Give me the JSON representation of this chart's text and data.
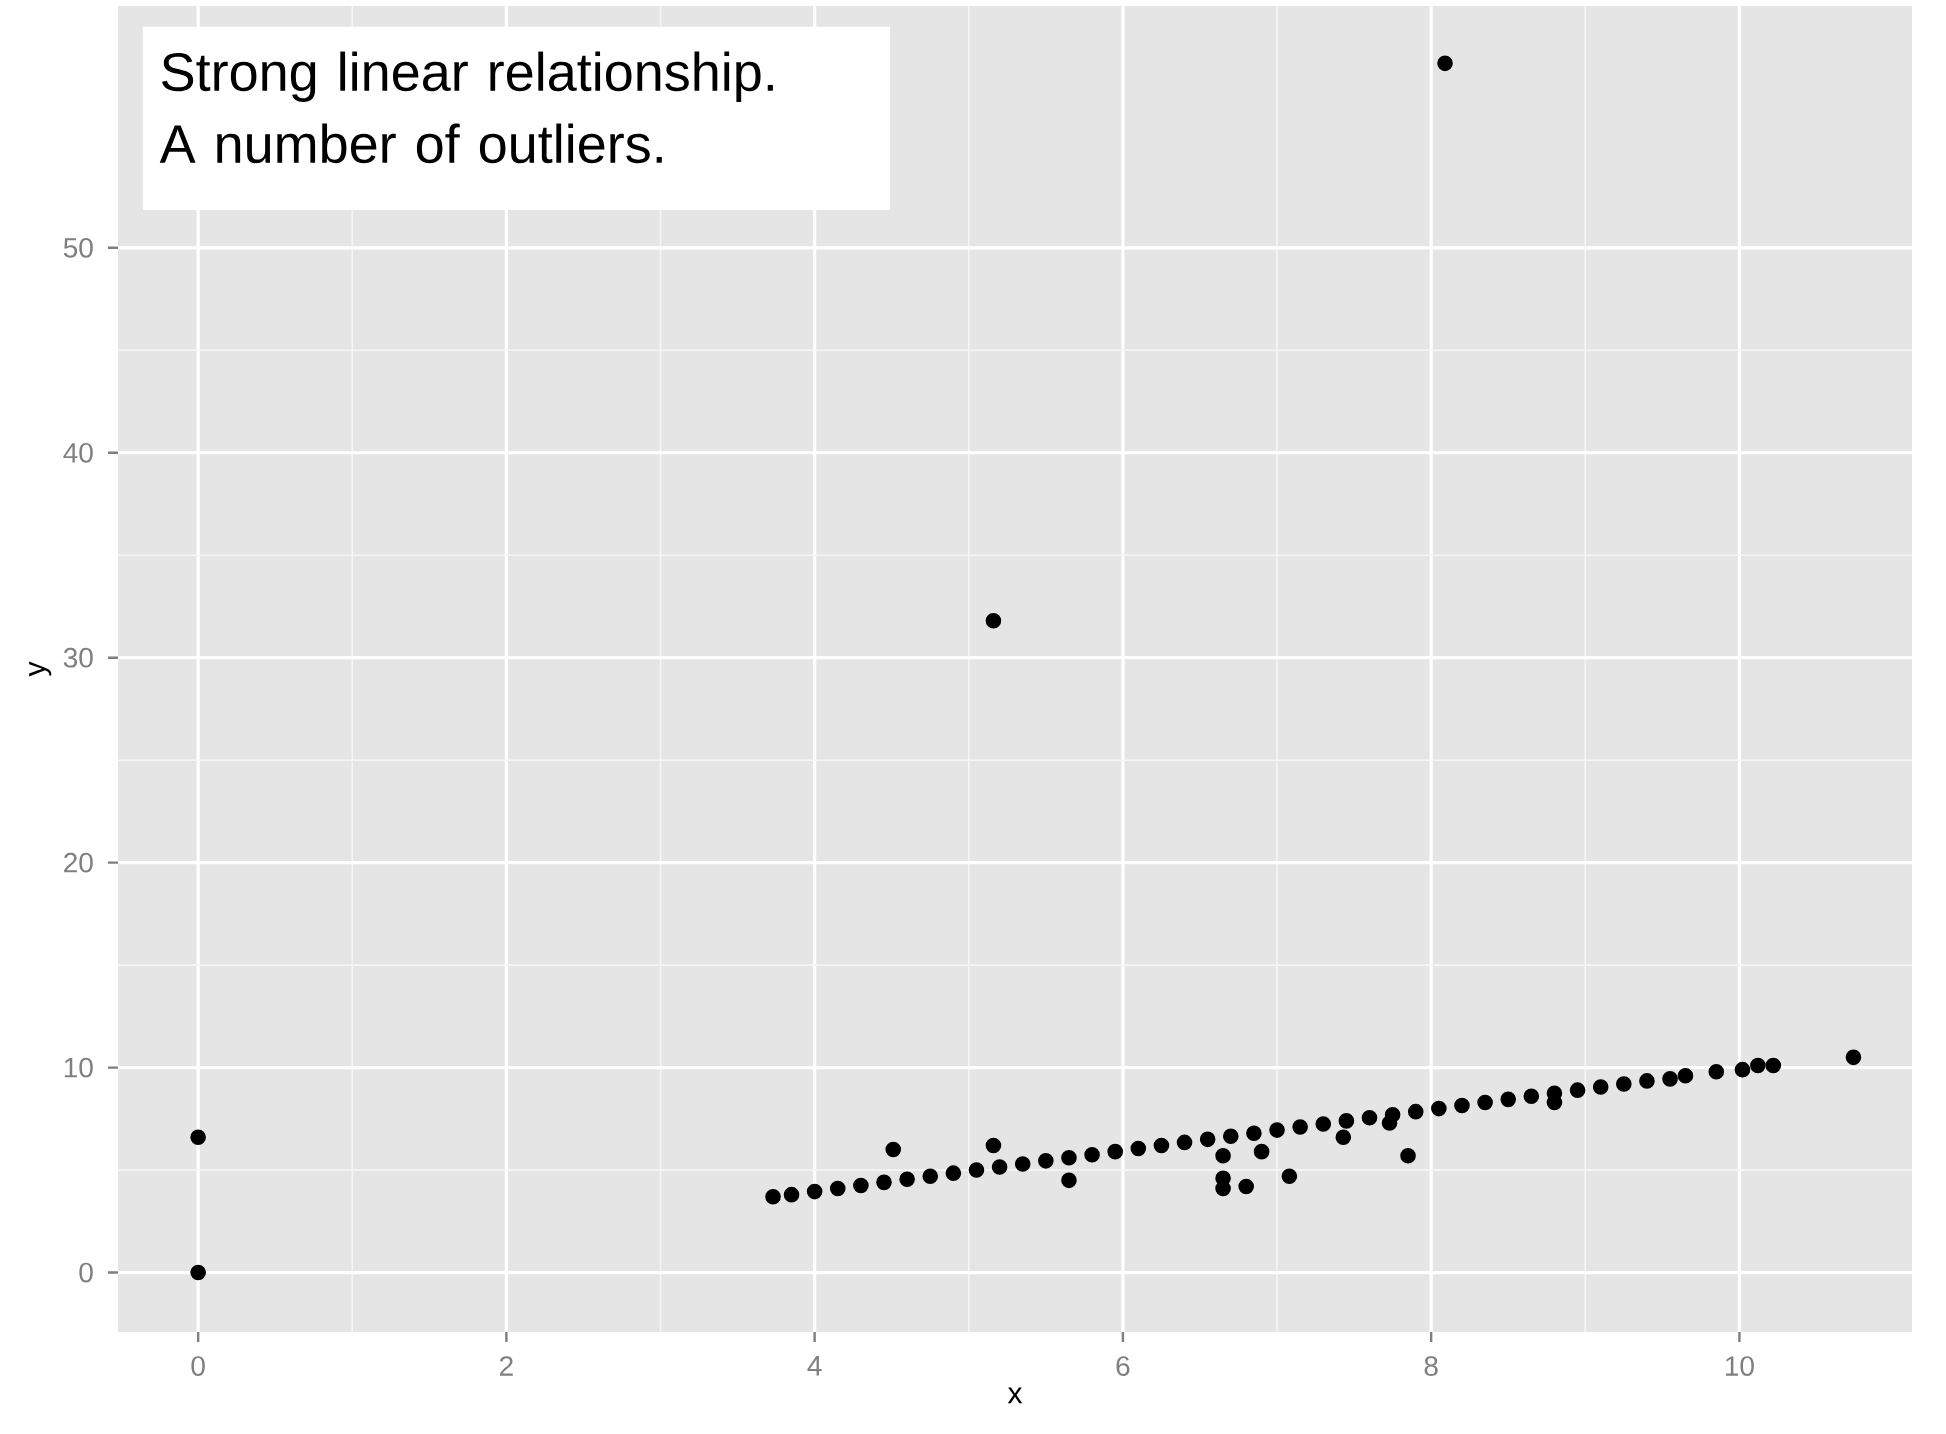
{
  "chart_data": {
    "type": "scatter",
    "xlabel": "x",
    "ylabel": "y",
    "annotations": [
      "Strong linear relationship.",
      "A number of outliers."
    ],
    "xlim": [
      -0.52,
      11.12
    ],
    "ylim": [
      -2.9,
      61.8
    ],
    "xticks": [
      0,
      2,
      4,
      6,
      8,
      10
    ],
    "yticks": [
      0,
      10,
      20,
      30,
      40,
      50
    ],
    "grid": true,
    "marker": "circle",
    "color": "#000000",
    "x": [
      0,
      0,
      8.09,
      5.16,
      4.51,
      5.16,
      5.65,
      6.65,
      6.65,
      6.65,
      6.8,
      6.9,
      7.08,
      7.43,
      7.85,
      7.73,
      8.8,
      10.74,
      10.22,
      10.12,
      10.02,
      9.85,
      9.65,
      3.73,
      3.85,
      4.0,
      4.15,
      4.3,
      4.45,
      4.6,
      4.75,
      4.9,
      5.05,
      5.2,
      5.35,
      5.5,
      5.65,
      5.8,
      5.95,
      6.1,
      6.25,
      6.4,
      6.55,
      6.7,
      6.85,
      7.0,
      7.15,
      7.3,
      7.45,
      7.6,
      7.75,
      7.9,
      8.05,
      8.2,
      8.35,
      8.5,
      8.65,
      8.8,
      8.95,
      9.1,
      9.25,
      9.4,
      9.55
    ],
    "values": [
      0,
      6.6,
      59,
      31.8,
      6.0,
      6.2,
      4.5,
      5.7,
      4.6,
      4.1,
      4.2,
      5.9,
      4.7,
      6.6,
      5.7,
      7.3,
      8.3,
      10.5,
      10.1,
      10.1,
      9.9,
      9.8,
      9.6,
      3.7,
      3.8,
      3.95,
      4.1,
      4.25,
      4.4,
      4.55,
      4.7,
      4.85,
      5.0,
      5.15,
      5.3,
      5.45,
      5.6,
      5.75,
      5.9,
      6.05,
      6.2,
      6.35,
      6.5,
      6.65,
      6.8,
      6.95,
      7.1,
      7.25,
      7.4,
      7.55,
      7.7,
      7.85,
      8.0,
      8.15,
      8.3,
      8.45,
      8.6,
      8.75,
      8.9,
      9.05,
      9.2,
      9.35,
      9.45
    ]
  }
}
